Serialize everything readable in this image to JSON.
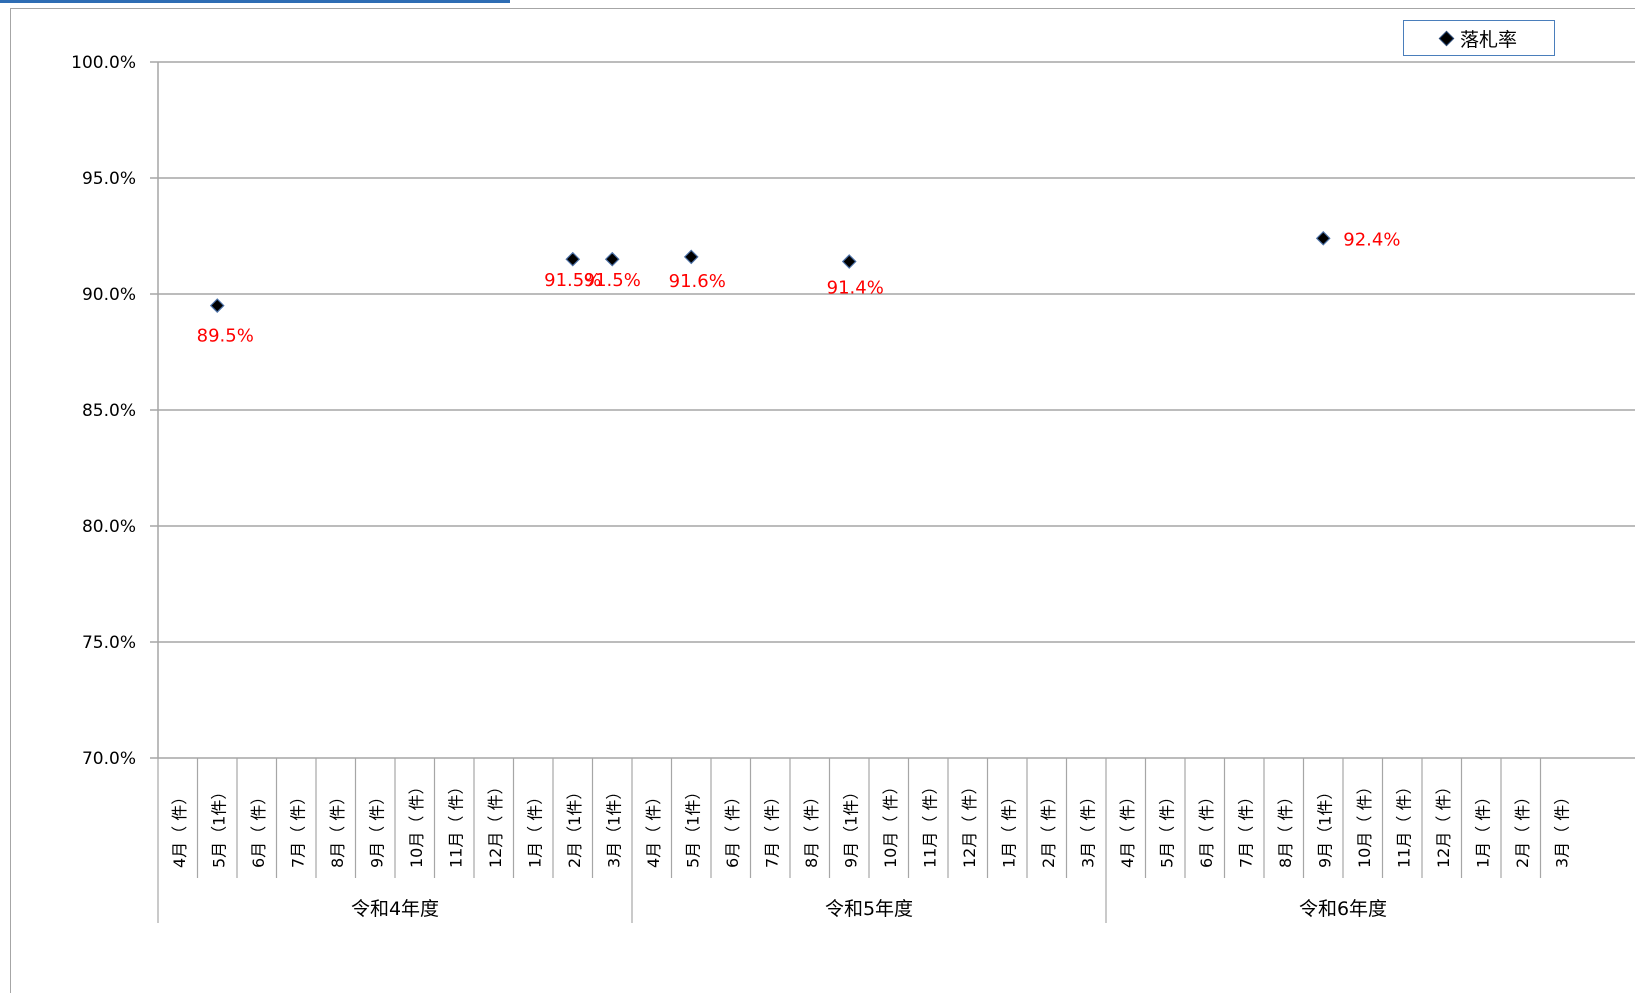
{
  "chart_data": {
    "type": "scatter",
    "title": "",
    "ylabel": "",
    "ylim": [
      70,
      100
    ],
    "ytick_step": 5,
    "y_tick_labels": [
      "100.0%",
      "95.0%",
      "90.0%",
      "85.0%",
      "80.0%",
      "75.0%",
      "70.0%"
    ],
    "y_tick_values": [
      100,
      95,
      90,
      85,
      80,
      75,
      70
    ],
    "legend": {
      "label": "落札率",
      "placement": "top-right"
    },
    "grid": true,
    "groups": [
      {
        "name": "令和4年度",
        "months": [
          "4月（ 件）",
          "5月（1件）",
          "6月（ 件）",
          "7月（ 件）",
          "8月（ 件）",
          "9月（ 件）",
          "10月（ 件）",
          "11月（ 件）",
          "12月（ 件）",
          "1月（ 件）",
          "2月（1件）",
          "3月（1件）"
        ]
      },
      {
        "name": "令和5年度",
        "months": [
          "4月（ 件）",
          "5月（1件）",
          "6月（ 件）",
          "7月（ 件）",
          "8月（ 件）",
          "9月（1件）",
          "10月（ 件）",
          "11月（ 件）",
          "12月（ 件）",
          "1月（ 件）",
          "2月（ 件）",
          "3月（ 件）"
        ]
      },
      {
        "name": "令和6年度",
        "months": [
          "4月（ 件）",
          "5月（ 件）",
          "6月（ 件）",
          "7月（ 件）",
          "8月（ 件）",
          "9月（1件）",
          "10月（ 件）",
          "11月（ 件）",
          "12月（ 件）",
          "1月（ 件）",
          "2月（ 件）",
          "3月（ 件）"
        ]
      }
    ],
    "series": [
      {
        "name": "落札率",
        "marker": "diamond",
        "color": "#000000",
        "label_color": "#ff0000",
        "points": [
          {
            "group": 0,
            "month": 1,
            "value": 89.5,
            "label": "89.5%"
          },
          {
            "group": 0,
            "month": 10,
            "value": 91.5,
            "label": "91.5%"
          },
          {
            "group": 0,
            "month": 11,
            "value": 91.5,
            "label": "91.5%"
          },
          {
            "group": 1,
            "month": 1,
            "value": 91.6,
            "label": "91.6%"
          },
          {
            "group": 1,
            "month": 5,
            "value": 91.4,
            "label": "91.4%"
          },
          {
            "group": 2,
            "month": 5,
            "value": 92.4,
            "label": "92.4%"
          }
        ]
      }
    ]
  },
  "colors": {
    "grid": "#a6a6a6",
    "marker": "#000000",
    "label": "#ff0000",
    "legend_border": "#4a7ebb",
    "accent": "#2e6db4"
  }
}
